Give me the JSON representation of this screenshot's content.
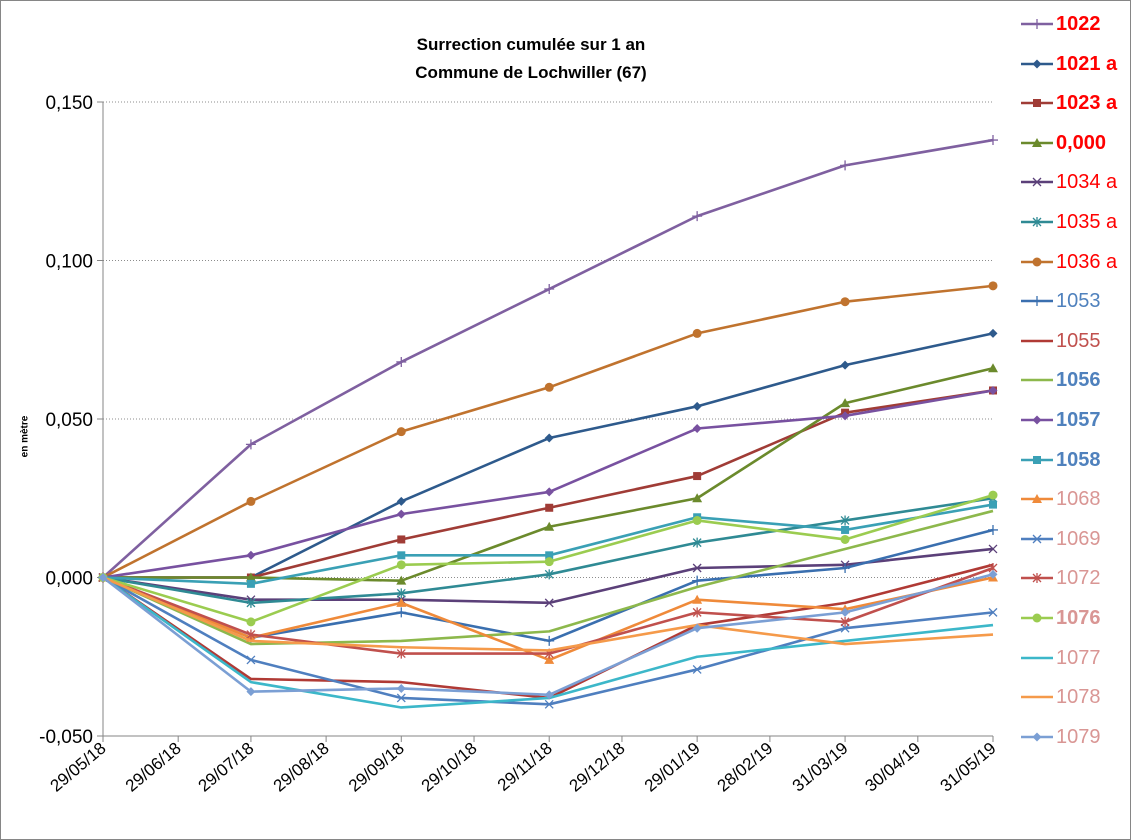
{
  "chart_data": {
    "type": "line",
    "title": "Surrection cumulée sur 1 an",
    "subtitle": "Commune de Lochwiller (67)",
    "xlabel": "",
    "ylabel": "en mètre",
    "ylim": [
      -0.05,
      0.15
    ],
    "y_ticks": [
      "-0,050",
      "0,000",
      "0,050",
      "0,100",
      "0,150"
    ],
    "y_tick_values": [
      -0.05,
      0,
      0.05,
      0.1,
      0.15
    ],
    "x_ticks": [
      "29/05/18",
      "29/06/18",
      "29/07/18",
      "29/08/18",
      "29/09/18",
      "29/10/18",
      "29/11/18",
      "29/12/18",
      "29/01/19",
      "28/02/19",
      "31/03/19",
      "30/04/19",
      "31/05/19"
    ],
    "x_tick_dates": [
      "2018-05-29",
      "2018-06-29",
      "2018-07-29",
      "2018-08-29",
      "2018-09-29",
      "2018-10-29",
      "2018-11-29",
      "2018-12-29",
      "2019-01-29",
      "2019-02-28",
      "2019-03-31",
      "2019-04-30",
      "2019-05-31"
    ],
    "x": [
      "2018-05-29",
      "2018-07-29",
      "2018-09-29",
      "2018-11-29",
      "2019-01-29",
      "2019-03-31",
      "2019-05-31"
    ],
    "grid": "horizontal dotted",
    "legend_position": "right",
    "series": [
      {
        "name": "1022",
        "color": "#7f60a0",
        "marker": "plus",
        "label_color": "#ff0000",
        "label_bold": true,
        "values": [
          0,
          0.042,
          0.068,
          0.091,
          0.114,
          0.13,
          0.138
        ]
      },
      {
        "name": "1021 a",
        "color": "#2e5a8c",
        "marker": "diamond",
        "label_color": "#ff0000",
        "label_bold": true,
        "values": [
          0,
          0,
          0.024,
          0.044,
          0.054,
          0.067,
          0.077
        ]
      },
      {
        "name": "1023 a",
        "color": "#a03c36",
        "marker": "square",
        "label_color": "#ff0000",
        "label_bold": true,
        "values": [
          0,
          0,
          0.012,
          0.022,
          0.032,
          0.052,
          0.059
        ]
      },
      {
        "name": "0,000",
        "color": "#6b8a2c",
        "marker": "triangle",
        "label_color": "#ff0000",
        "label_bold": true,
        "values": [
          0,
          0,
          -0.001,
          0.016,
          0.025,
          0.055,
          0.066
        ]
      },
      {
        "name": "1034 a",
        "color": "#5b4079",
        "marker": "x",
        "label_color": "#ff0000",
        "label_bold": false,
        "values": [
          0,
          -0.007,
          -0.007,
          -0.008,
          0.003,
          0.004,
          0.009
        ]
      },
      {
        "name": "1035 a",
        "color": "#2f8a94",
        "marker": "star",
        "label_color": "#ff0000",
        "label_bold": false,
        "values": [
          0,
          -0.008,
          -0.005,
          0.001,
          0.011,
          0.018,
          0.025
        ]
      },
      {
        "name": "1036 a",
        "color": "#c0732e",
        "marker": "circle",
        "label_color": "#ff0000",
        "label_bold": false,
        "values": [
          0,
          0.024,
          0.046,
          0.06,
          0.077,
          0.087,
          0.092
        ]
      },
      {
        "name": "1053",
        "color": "#3a6faf",
        "marker": "plus",
        "label_color": "#4f81bd",
        "label_bold": false,
        "values": [
          0,
          -0.019,
          -0.011,
          -0.02,
          -0.001,
          0.003,
          0.015
        ]
      },
      {
        "name": "1055",
        "color": "#b03a35",
        "marker": "none",
        "label_color": "#c0504d",
        "label_bold": false,
        "values": [
          0,
          -0.032,
          -0.033,
          -0.038,
          -0.015,
          -0.008,
          0.004
        ]
      },
      {
        "name": "1056",
        "color": "#8db84c",
        "marker": "none",
        "label_color": "#4f81bd",
        "label_bold": true,
        "values": [
          0,
          -0.021,
          -0.02,
          -0.017,
          -0.003,
          0.009,
          0.021
        ]
      },
      {
        "name": "1057",
        "color": "#7851a0",
        "marker": "diamond",
        "label_color": "#4f81bd",
        "label_bold": true,
        "values": [
          0,
          0.007,
          0.02,
          0.027,
          0.047,
          0.051,
          0.059
        ]
      },
      {
        "name": "1058",
        "color": "#3aa0b5",
        "marker": "square",
        "label_color": "#4f81bd",
        "label_bold": true,
        "values": [
          0,
          -0.002,
          0.007,
          0.007,
          0.019,
          0.015,
          0.023
        ]
      },
      {
        "name": "1068",
        "color": "#ef8a3a",
        "marker": "triangle",
        "label_color": "#d99694",
        "label_bold": false,
        "values": [
          0,
          -0.019,
          -0.008,
          -0.026,
          -0.007,
          -0.01,
          0
        ]
      },
      {
        "name": "1069",
        "color": "#4f7fbf",
        "marker": "x",
        "label_color": "#d99694",
        "label_bold": false,
        "values": [
          0,
          -0.026,
          -0.038,
          -0.04,
          -0.029,
          -0.016,
          -0.011
        ]
      },
      {
        "name": "1072",
        "color": "#c0504d",
        "marker": "star",
        "label_color": "#d99694",
        "label_bold": false,
        "values": [
          0,
          -0.018,
          -0.024,
          -0.024,
          -0.011,
          -0.014,
          0.003
        ]
      },
      {
        "name": "1076",
        "color": "#9bcc50",
        "marker": "circle",
        "label_color": "#d99694",
        "label_bold": true,
        "values": [
          0,
          -0.014,
          0.004,
          0.005,
          0.018,
          0.012,
          0.026
        ]
      },
      {
        "name": "1077",
        "color": "#3cb7c9",
        "marker": "none",
        "label_color": "#d99694",
        "label_bold": false,
        "values": [
          0,
          -0.033,
          -0.041,
          -0.038,
          -0.025,
          -0.02,
          -0.015
        ]
      },
      {
        "name": "1078",
        "color": "#f59a4a",
        "marker": "none",
        "label_color": "#d99694",
        "label_bold": false,
        "values": [
          0,
          -0.02,
          -0.022,
          -0.023,
          -0.015,
          -0.021,
          -0.018
        ]
      },
      {
        "name": "1079",
        "color": "#7b9fd4",
        "marker": "diamond",
        "label_color": "#d99694",
        "label_bold": false,
        "values": [
          0,
          -0.036,
          -0.035,
          -0.037,
          -0.016,
          -0.011,
          0.001
        ]
      }
    ]
  }
}
